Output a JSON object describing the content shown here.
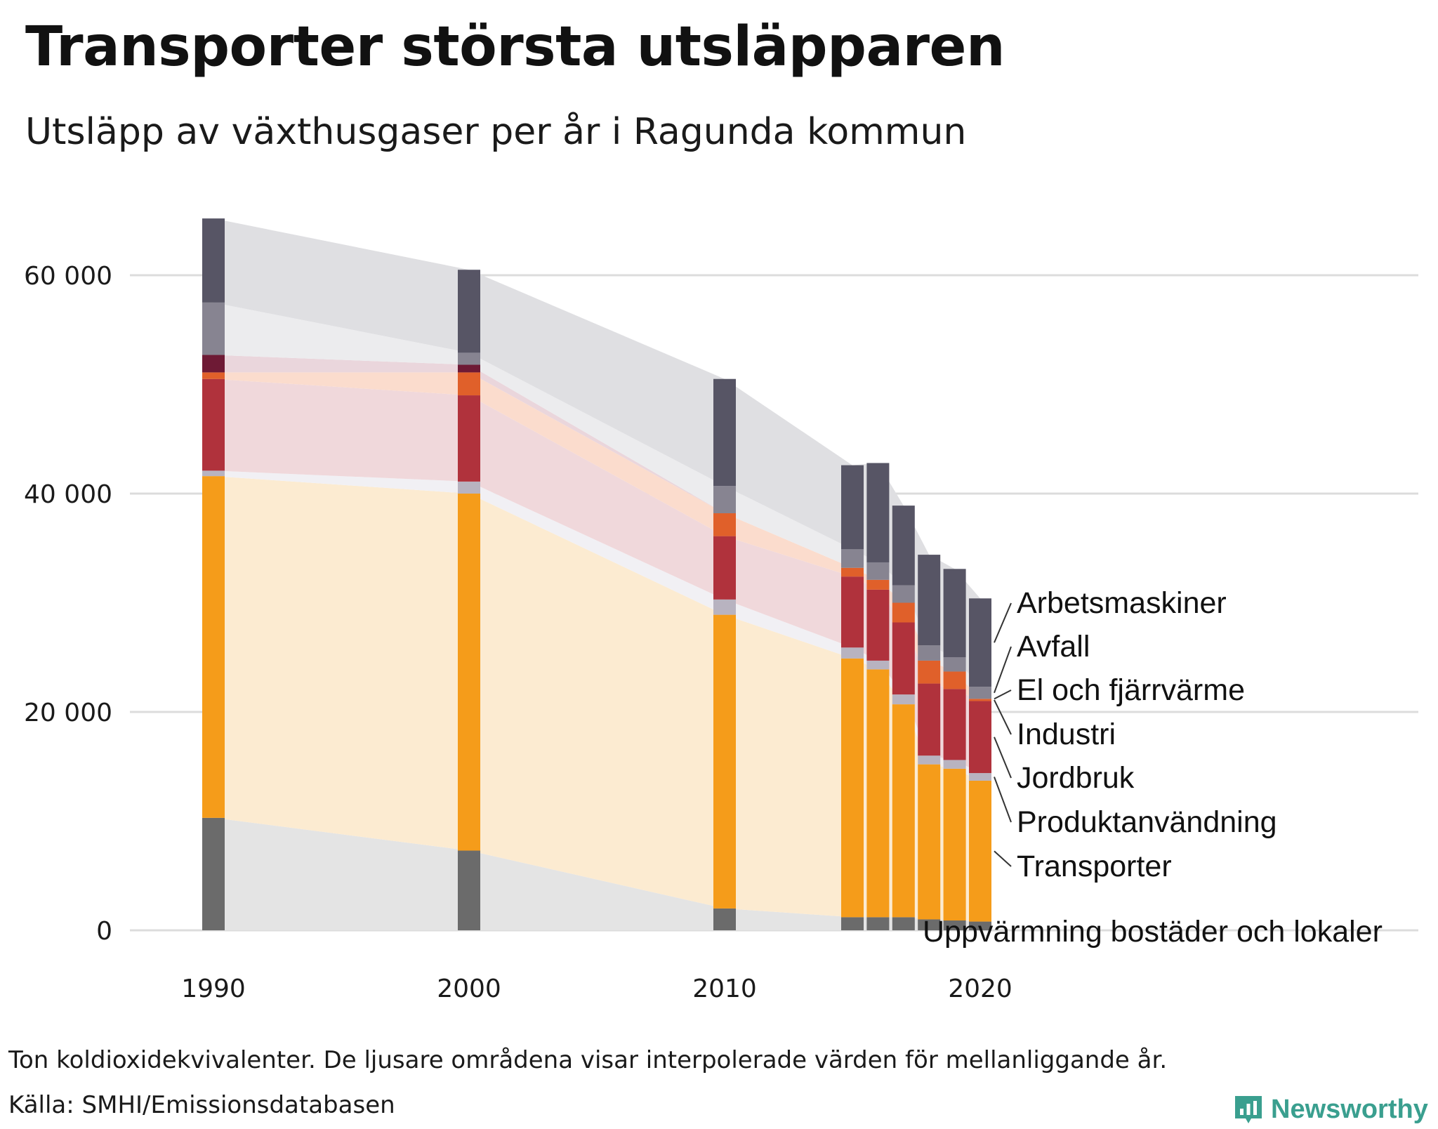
{
  "header": {
    "title": "Transporter största utsläpparen",
    "subtitle": "Utsläpp av växthusgaser per år i Ragunda kommun"
  },
  "footer": {
    "note": "Ton koldioxidekvivalenter. De ljusare områdena visar interpolerade värden för mellanliggande år.",
    "source": "Källa: SMHI/Emissionsdatabasen",
    "brand": "Newsworthy"
  },
  "colors": {
    "brand": "#3a9f8f",
    "grid": "#dcdcdc"
  },
  "chart_data": {
    "type": "bar",
    "stacked": true,
    "title": "Transporter största utsläpparen",
    "subtitle": "Utsläpp av växthusgaser per år i Ragunda kommun",
    "xlabel": "",
    "ylabel": "Ton koldioxidekvivalenter",
    "ylim": [
      0,
      65000
    ],
    "y_ticks": [
      0,
      20000,
      40000,
      60000
    ],
    "y_tick_labels": [
      "0",
      "20 000",
      "40 000",
      "60 000"
    ],
    "x_ticks": [
      1990,
      2000,
      2010,
      2020
    ],
    "x_tick_labels": [
      "1990",
      "2000",
      "2010",
      "2020"
    ],
    "grid": true,
    "interpolated_areas": true,
    "years": [
      1990,
      2000,
      2010,
      2015,
      2016,
      2017,
      2018,
      2019,
      2020
    ],
    "series": [
      {
        "name": "Uppvärmning bostäder och lokaler",
        "color": "#6b6b6b",
        "area_color": "#e4e4e4",
        "values": [
          10300,
          7300,
          2000,
          1200,
          1200,
          1200,
          1000,
          900,
          800
        ]
      },
      {
        "name": "Transporter",
        "color": "#f59c1a",
        "area_color": "#fcebd1",
        "values": [
          31300,
          32700,
          26900,
          23700,
          22700,
          19500,
          14200,
          13900,
          12900
        ]
      },
      {
        "name": "Produktanvändning",
        "color": "#b8b3c0",
        "area_color": "#f1f0f4",
        "values": [
          500,
          1100,
          1400,
          1000,
          800,
          900,
          800,
          800,
          700
        ]
      },
      {
        "name": "Jordbruk",
        "color": "#b0323c",
        "area_color": "#f0d8db",
        "values": [
          8400,
          7900,
          5800,
          6500,
          6500,
          6600,
          6600,
          6500,
          6600
        ]
      },
      {
        "name": "Industri",
        "color": "#e0602a",
        "area_color": "#fbdccd",
        "values": [
          600,
          2100,
          2100,
          800,
          900,
          1800,
          2100,
          1600,
          200
        ]
      },
      {
        "name": "El och fjärrvärme",
        "color": "#6e1a35",
        "area_color": "#ead6dc",
        "values": [
          1600,
          700,
          0,
          0,
          0,
          0,
          0,
          0,
          0
        ]
      },
      {
        "name": "Avfall",
        "color": "#878491",
        "area_color": "#ececee",
        "values": [
          4800,
          1100,
          2500,
          1700,
          1600,
          1600,
          1400,
          1300,
          1100
        ]
      },
      {
        "name": "Arbetsmaskiner",
        "color": "#575565",
        "area_color": "#dfdfe2",
        "values": [
          7700,
          7600,
          9800,
          7700,
          9100,
          7300,
          8300,
          8100,
          8100
        ]
      }
    ],
    "legend": "right, labels next to last bar",
    "labels_top_to_bottom": [
      "Arbetsmaskiner",
      "Avfall",
      "El och fjärrvärme",
      "Industri",
      "Jordbruk",
      "Produktanvändning",
      "Transporter",
      "Uppvärmning bostäder och lokaler"
    ]
  }
}
